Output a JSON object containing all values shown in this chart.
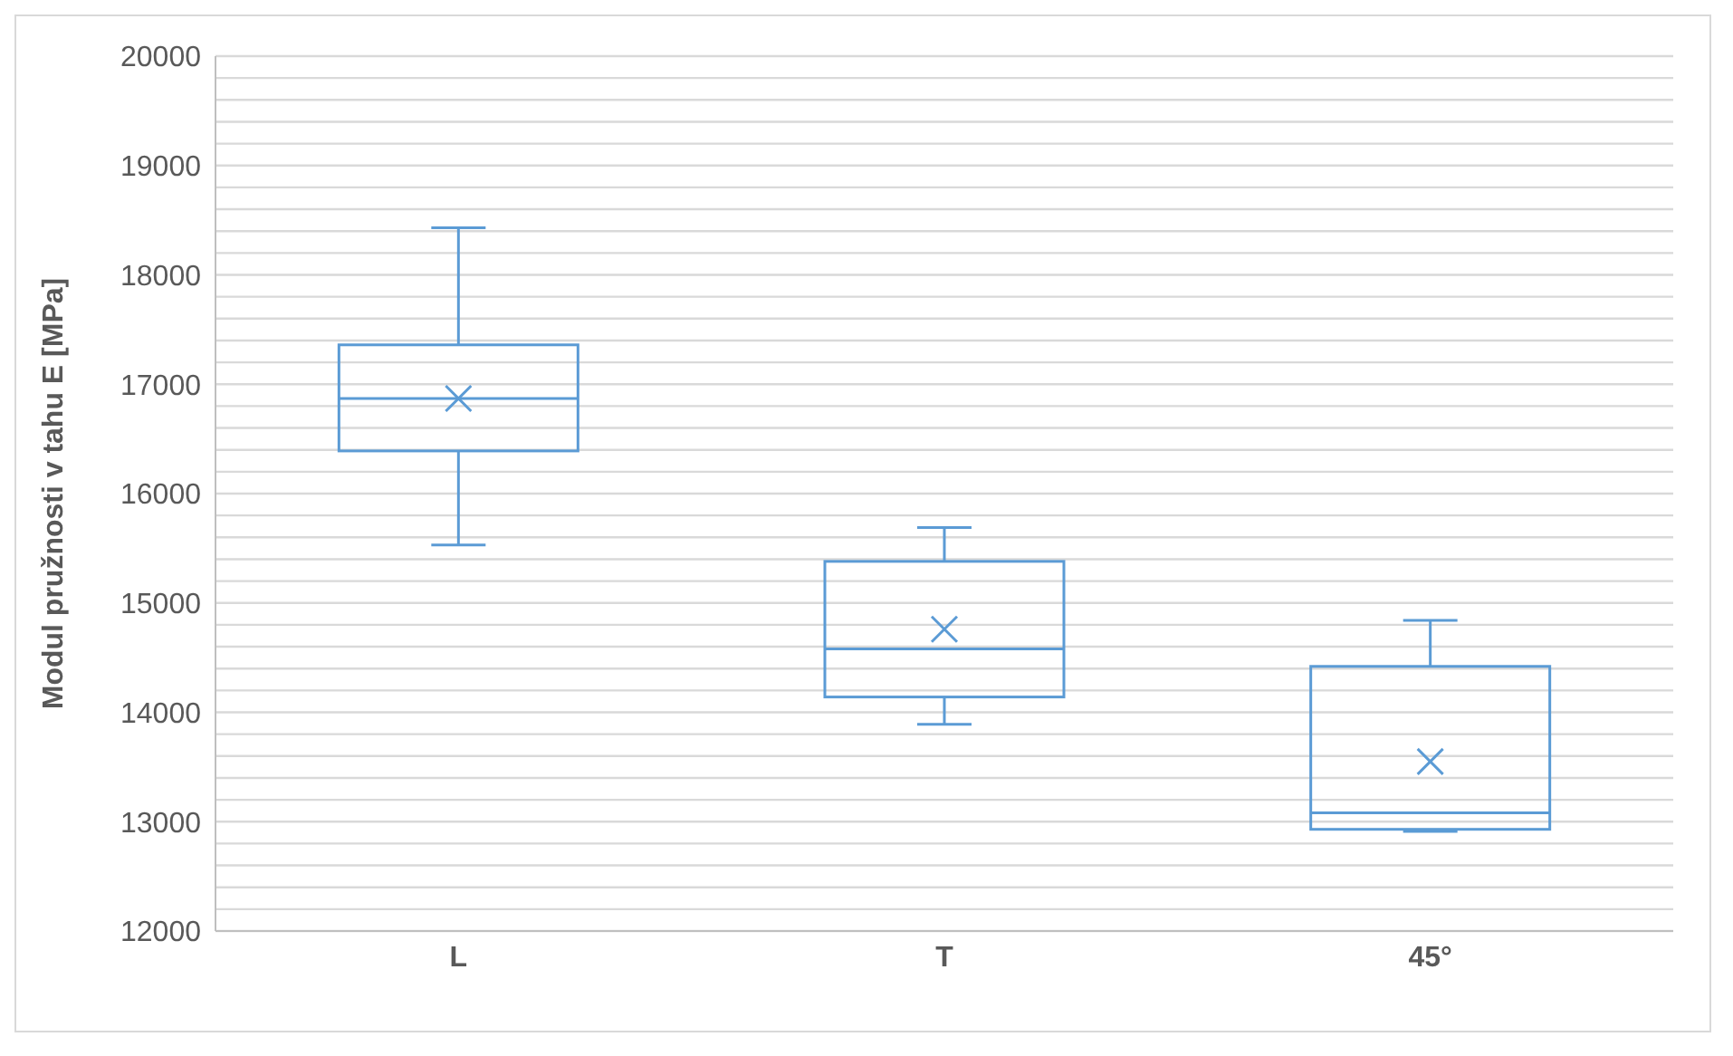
{
  "chart_data": {
    "type": "box",
    "ylabel": "Modul pružnosti v tahu E [MPa]",
    "categories": [
      "L",
      "T",
      "45°"
    ],
    "color": "#5b9bd5",
    "boxes": [
      {
        "low": 15530,
        "q1": 16390,
        "median": 16870,
        "q3": 17360,
        "high": 18430,
        "mean": 16870
      },
      {
        "low": 13890,
        "q1": 14140,
        "median": 14580,
        "q3": 15380,
        "high": 15690,
        "mean": 14760
      },
      {
        "low": 12910,
        "q1": 12930,
        "median": 13080,
        "q3": 14420,
        "high": 14840,
        "mean": 13550
      }
    ],
    "ylim": [
      12000,
      20000
    ],
    "yticks": [
      12000,
      {
        "value": 12200,
        "label": null
      },
      {
        "value": 12400,
        "label": null
      },
      {
        "value": 12600,
        "label": null
      },
      {
        "value": 12800,
        "label": null
      },
      13000,
      {
        "value": 13200,
        "label": null
      },
      {
        "value": 13400,
        "label": null
      },
      {
        "value": 13600,
        "label": null
      },
      {
        "value": 13800,
        "label": null
      },
      14000,
      {
        "value": 14200,
        "label": null
      },
      {
        "value": 14400,
        "label": null
      },
      {
        "value": 14600,
        "label": null
      },
      {
        "value": 14800,
        "label": null
      },
      15000,
      {
        "value": 15200,
        "label": null
      },
      {
        "value": 15400,
        "label": null
      },
      {
        "value": 15600,
        "label": null
      },
      {
        "value": 15800,
        "label": null
      },
      16000,
      {
        "value": 16200,
        "label": null
      },
      {
        "value": 16400,
        "label": null
      },
      {
        "value": 16600,
        "label": null
      },
      {
        "value": 16800,
        "label": null
      },
      17000,
      {
        "value": 17200,
        "label": null
      },
      {
        "value": 17400,
        "label": null
      },
      {
        "value": 17600,
        "label": null
      },
      {
        "value": 17800,
        "label": null
      },
      18000,
      {
        "value": 18200,
        "label": null
      },
      {
        "value": 18400,
        "label": null
      },
      {
        "value": 18600,
        "label": null
      },
      {
        "value": 18800,
        "label": null
      },
      19000,
      {
        "value": 19200,
        "label": null
      },
      {
        "value": 19400,
        "label": null
      },
      {
        "value": 19600,
        "label": null
      },
      {
        "value": 19800,
        "label": null
      },
      20000
    ],
    "grid": "y",
    "legend": false
  }
}
